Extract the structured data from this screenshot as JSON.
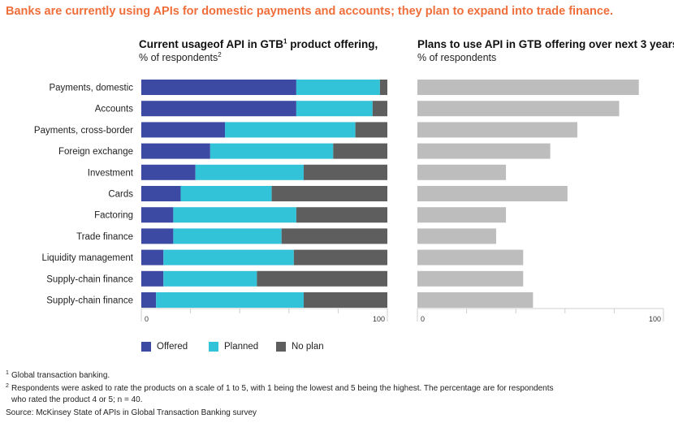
{
  "title": "Banks are currently using APIs for domestic payments and accounts; they plan to expand into trade finance.",
  "colors": {
    "title": "#ef6e3a",
    "offered": "#3d4aa3",
    "planned": "#33c3d9",
    "no_plan": "#5e5e5e",
    "plans_bar": "#bdbdbd",
    "axis": "#cfcfcf"
  },
  "chart_data": [
    {
      "type": "bar",
      "orientation": "horizontal",
      "stacked": true,
      "title": "Current usageof API in GTB",
      "title_sup": "1",
      "title_suffix": " product offering,",
      "subtitle": "% of respondents",
      "subtitle_sup": "2",
      "categories": [
        "Payments, domestic",
        "Accounts",
        "Payments, cross-border",
        "Foreign exchange",
        "Investment",
        "Cards",
        "Factoring",
        "Trade finance",
        "Liquidity management",
        "Supply-chain finance",
        "Supply-chain finance"
      ],
      "series": [
        {
          "name": "Offered",
          "values": [
            63,
            63,
            34,
            28,
            22,
            16,
            13,
            13,
            9,
            9,
            6
          ]
        },
        {
          "name": "Planned",
          "values": [
            34,
            31,
            53,
            50,
            44,
            37,
            50,
            44,
            53,
            38,
            60
          ]
        },
        {
          "name": "No plan",
          "values": [
            3,
            6,
            13,
            22,
            34,
            47,
            37,
            43,
            38,
            53,
            34
          ]
        }
      ],
      "xlim": [
        0,
        100
      ],
      "tick_labels": [
        "0",
        "100"
      ]
    },
    {
      "type": "bar",
      "orientation": "horizontal",
      "title": "Plans to use API in GTB offering over next 3 years,",
      "subtitle": "% of respondents",
      "categories": [
        "Payments, domestic",
        "Accounts",
        "Payments, cross-border",
        "Foreign exchange",
        "Investment",
        "Cards",
        "Factoring",
        "Trade finance",
        "Liquidity management",
        "Supply-chain finance",
        "Supply-chain finance"
      ],
      "values": [
        90,
        82,
        65,
        54,
        36,
        61,
        36,
        32,
        43,
        43,
        47
      ],
      "xlim": [
        0,
        100
      ],
      "tick_labels": [
        "0",
        "100"
      ]
    }
  ],
  "legend": [
    {
      "label": "Offered",
      "color_key": "offered"
    },
    {
      "label": "Planned",
      "color_key": "planned"
    },
    {
      "label": "No plan",
      "color_key": "no_plan"
    }
  ],
  "footnotes": [
    {
      "num": "1",
      "lines": [
        "Global transaction banking."
      ]
    },
    {
      "num": "2",
      "lines": [
        "Respondents were asked to rate the products on a scale of 1 to 5, with 1 being the lowest and 5 being the highest. The percentage are for respondents",
        "who rated the product 4 or 5; n = 40."
      ]
    }
  ],
  "source": "Source: McKinsey State of APIs in Global Transaction Banking survey"
}
